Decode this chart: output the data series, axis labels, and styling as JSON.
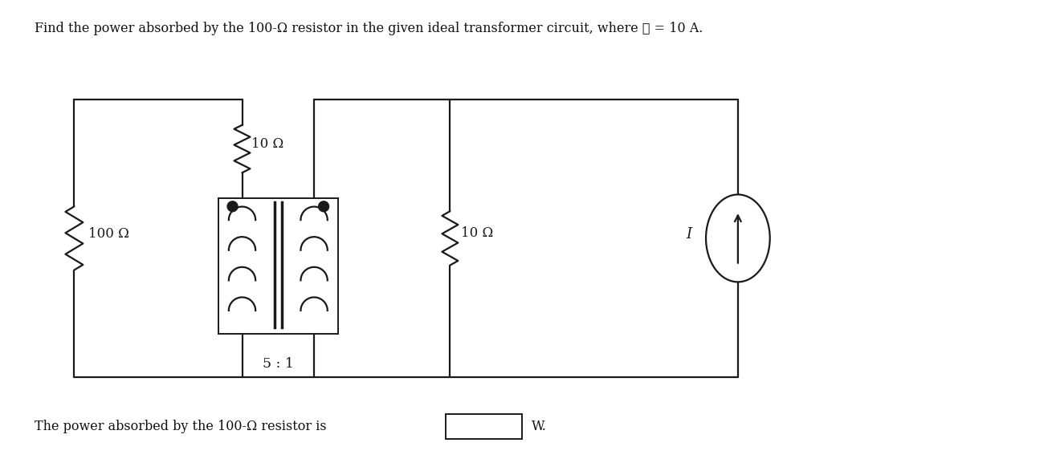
{
  "title_text": "Find the power absorbed by the 100-Ω resistor in the given ideal transformer circuit, where ℹ = 10 A.",
  "bottom_text": "The power absorbed by the 100-Ω resistor is",
  "units": "W.",
  "label_100": "100 Ω",
  "label_10_top": "10 Ω",
  "label_10_mid": "10 Ω",
  "label_ratio": "5 : 1",
  "label_I": "I",
  "bg_color": "#ffffff",
  "line_color": "#1a1a1a",
  "fig_width": 13.1,
  "fig_height": 5.72
}
